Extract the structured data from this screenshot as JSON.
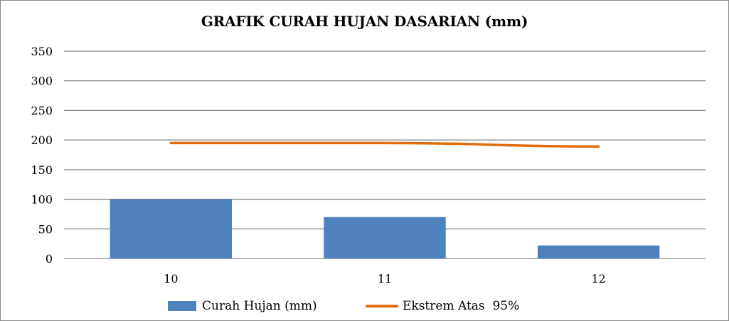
{
  "chart_data": {
    "type": "bar",
    "title": "GRAFIK CURAH HUJAN DASARIAN (mm)",
    "categories": [
      "10",
      "11",
      "12"
    ],
    "ylim": [
      0,
      350
    ],
    "yticks": [
      0,
      50,
      100,
      150,
      200,
      250,
      300,
      350
    ],
    "grid": true,
    "legend_position": "bottom",
    "series": [
      {
        "name": "Curah Hujan (mm)",
        "kind": "bar",
        "color": "#4f81bd",
        "values": [
          100,
          70,
          22
        ]
      },
      {
        "name": "Ekstrem Atas  95%",
        "kind": "line",
        "color": "#e36c0a",
        "values": [
          195,
          195,
          189
        ]
      }
    ]
  }
}
